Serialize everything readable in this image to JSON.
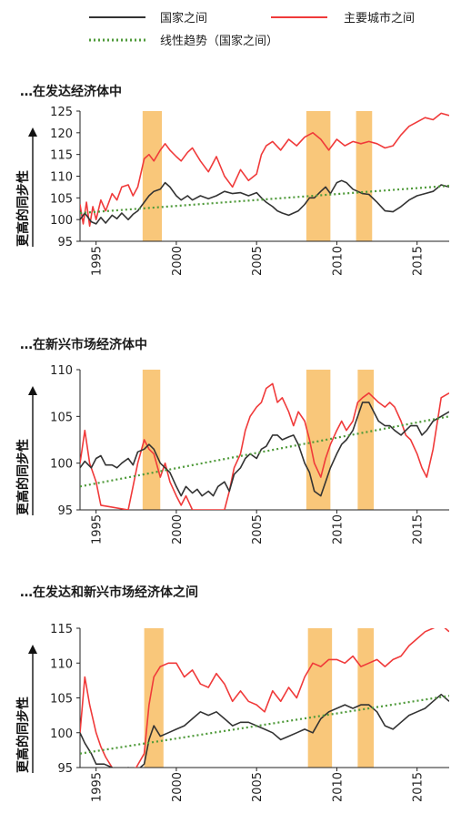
{
  "legend": [
    {
      "label": "国家之间",
      "color": "#333333",
      "style": "solid"
    },
    {
      "label": "主要城市之间",
      "color": "#f03a3a",
      "style": "solid"
    },
    {
      "label": "线性趋势（国家之间）",
      "color": "#4f9a3a",
      "style": "dotted"
    }
  ],
  "colors": {
    "countries": "#333333",
    "cities": "#f03a3a",
    "trend": "#4f9a3a",
    "recession": "#f9c77a"
  },
  "chart_data": [
    {
      "type": "line",
      "title": "…在发达经济体中",
      "ylabel": "更高的同步性",
      "ylim": [
        95,
        125
      ],
      "yticks": [
        95,
        100,
        105,
        110,
        115,
        120,
        125
      ],
      "xlim": [
        1994,
        2017
      ],
      "xticks": [
        1995,
        2000,
        2005,
        2010,
        2015
      ],
      "shaded": [
        [
          1997.9,
          1999.1
        ],
        [
          2008.1,
          2009.6
        ],
        [
          2011.2,
          2012.2
        ]
      ],
      "series": [
        {
          "name": "国家之间",
          "x": [
            1994.0,
            1994.3,
            1994.7,
            1995.0,
            1995.3,
            1995.6,
            1996.0,
            1996.3,
            1996.6,
            1997.0,
            1997.3,
            1997.6,
            1998.0,
            1998.3,
            1998.6,
            1999.0,
            1999.3,
            1999.6,
            2000.0,
            2000.3,
            2000.7,
            2001.0,
            2001.5,
            2002.0,
            2002.5,
            2003.0,
            2003.5,
            2004.0,
            2004.5,
            2005.0,
            2005.3,
            2005.6,
            2006.0,
            2006.3,
            2006.6,
            2007.0,
            2007.3,
            2007.6,
            2008.0,
            2008.3,
            2008.6,
            2009.0,
            2009.3,
            2009.6,
            2010.0,
            2010.3,
            2010.6,
            2011.0,
            2011.3,
            2011.6,
            2012.0,
            2012.5,
            2013.0,
            2013.5,
            2014.0,
            2014.5,
            2015.0,
            2015.5,
            2016.0,
            2016.5,
            2017.0
          ],
          "y": [
            100.0,
            101.5,
            99.5,
            99.0,
            100.5,
            99.2,
            101.0,
            100.2,
            101.5,
            100.0,
            101.2,
            102.0,
            104.0,
            105.5,
            106.5,
            107.0,
            108.5,
            107.5,
            105.5,
            104.5,
            105.5,
            104.5,
            105.5,
            104.8,
            105.5,
            106.5,
            106.0,
            106.2,
            105.5,
            106.2,
            105.0,
            104.0,
            103.0,
            102.0,
            101.5,
            101.0,
            101.5,
            102.0,
            103.5,
            105.0,
            105.0,
            106.5,
            107.5,
            106.0,
            108.5,
            109.0,
            108.5,
            107.0,
            106.5,
            106.0,
            105.8,
            104.0,
            102.0,
            101.8,
            103.0,
            104.5,
            105.5,
            106.0,
            106.5,
            108.0,
            107.5
          ]
        },
        {
          "name": "主要城市之间",
          "x": [
            1994.0,
            1994.2,
            1994.4,
            1994.6,
            1994.8,
            1995.0,
            1995.3,
            1995.6,
            1996.0,
            1996.3,
            1996.6,
            1997.0,
            1997.3,
            1997.6,
            1998.0,
            1998.3,
            1998.6,
            1999.0,
            1999.3,
            1999.6,
            2000.0,
            2000.3,
            2000.7,
            2001.0,
            2001.5,
            2002.0,
            2002.5,
            2003.0,
            2003.5,
            2004.0,
            2004.5,
            2005.0,
            2005.3,
            2005.6,
            2006.0,
            2006.5,
            2007.0,
            2007.5,
            2008.0,
            2008.5,
            2009.0,
            2009.5,
            2010.0,
            2010.5,
            2011.0,
            2011.5,
            2012.0,
            2012.5,
            2013.0,
            2013.5,
            2014.0,
            2014.5,
            2015.0,
            2015.5,
            2016.0,
            2016.5,
            2017.0
          ],
          "y": [
            103.5,
            99.0,
            104.0,
            98.5,
            103.0,
            100.0,
            104.5,
            102.0,
            106.0,
            104.5,
            107.5,
            108.0,
            105.5,
            107.5,
            114.0,
            115.0,
            113.5,
            116.0,
            117.5,
            116.0,
            114.5,
            113.5,
            115.5,
            116.5,
            113.5,
            111.0,
            114.5,
            110.0,
            107.5,
            111.5,
            109.0,
            110.5,
            115.0,
            117.0,
            118.0,
            116.0,
            118.5,
            117.0,
            119.0,
            120.0,
            118.5,
            116.0,
            118.5,
            117.0,
            118.0,
            117.5,
            118.0,
            117.5,
            116.5,
            117.0,
            119.5,
            121.5,
            122.5,
            123.5,
            123.0,
            124.5,
            124.0
          ]
        },
        {
          "name": "线性趋势（国家之间）",
          "x": [
            1994.0,
            2017.0
          ],
          "y": [
            101.5,
            107.8
          ]
        }
      ]
    },
    {
      "type": "line",
      "title": "…在新兴市场经济体中",
      "ylabel": "更高的同步性",
      "ylim": [
        95,
        110
      ],
      "yticks": [
        95,
        100,
        105,
        110
      ],
      "xlim": [
        1994,
        2017
      ],
      "xticks": [
        1995,
        2000,
        2005,
        2010,
        2015
      ],
      "shaded": [
        [
          1997.9,
          1999.0
        ],
        [
          2008.1,
          2009.6
        ],
        [
          2011.3,
          2012.3
        ]
      ],
      "series": [
        {
          "name": "国家之间",
          "x": [
            1994.0,
            1994.3,
            1994.7,
            1995.0,
            1995.3,
            1995.6,
            1996.0,
            1996.3,
            1996.6,
            1997.0,
            1997.3,
            1997.6,
            1998.0,
            1998.3,
            1998.6,
            1999.0,
            1999.3,
            1999.6,
            2000.0,
            2000.3,
            2000.6,
            2001.0,
            2001.3,
            2001.6,
            2002.0,
            2002.3,
            2002.6,
            2003.0,
            2003.3,
            2003.6,
            2004.0,
            2004.3,
            2004.6,
            2005.0,
            2005.3,
            2005.6,
            2006.0,
            2006.3,
            2006.6,
            2007.0,
            2007.3,
            2007.6,
            2008.0,
            2008.3,
            2008.6,
            2009.0,
            2009.3,
            2009.6,
            2010.0,
            2010.3,
            2010.6,
            2011.0,
            2011.3,
            2011.6,
            2012.0,
            2012.3,
            2012.6,
            2013.0,
            2013.3,
            2013.6,
            2014.0,
            2014.3,
            2014.6,
            2015.0,
            2015.3,
            2015.6,
            2016.0,
            2016.5,
            2017.0
          ],
          "y": [
            99.5,
            100.2,
            99.5,
            100.5,
            100.8,
            99.8,
            99.8,
            99.5,
            100.0,
            100.5,
            99.8,
            101.2,
            101.5,
            102.0,
            101.5,
            100.0,
            99.5,
            99.0,
            97.5,
            96.5,
            97.5,
            96.8,
            97.2,
            96.5,
            97.0,
            96.5,
            97.5,
            98.0,
            97.0,
            98.8,
            99.5,
            100.5,
            101.0,
            100.5,
            101.5,
            101.8,
            103.0,
            103.0,
            102.5,
            102.8,
            103.0,
            102.0,
            100.0,
            99.0,
            97.0,
            96.5,
            98.0,
            99.5,
            101.0,
            102.0,
            102.5,
            103.5,
            105.0,
            106.5,
            106.5,
            105.5,
            104.5,
            104.0,
            104.0,
            103.5,
            103.0,
            103.5,
            104.0,
            104.0,
            103.0,
            103.5,
            104.5,
            105.0,
            105.5
          ]
        },
        {
          "name": "主要城市之间",
          "x": [
            1994.0,
            1994.3,
            1994.6,
            1995.0,
            1995.3,
            1997.0,
            1997.3,
            1997.6,
            1998.0,
            1998.3,
            1998.6,
            1999.0,
            1999.3,
            1999.6,
            2000.0,
            2000.3,
            2000.6,
            2001.0,
            2001.5,
            2002.0,
            2002.5,
            2003.0,
            2003.3,
            2003.6,
            2004.0,
            2004.3,
            2004.6,
            2005.0,
            2005.3,
            2005.6,
            2006.0,
            2006.3,
            2006.6,
            2007.0,
            2007.3,
            2007.6,
            2008.0,
            2008.3,
            2008.6,
            2009.0,
            2009.3,
            2009.6,
            2010.0,
            2010.3,
            2010.6,
            2011.0,
            2011.3,
            2011.6,
            2012.0,
            2012.3,
            2012.6,
            2013.0,
            2013.3,
            2013.6,
            2014.0,
            2014.3,
            2014.6,
            2015.0,
            2015.3,
            2015.6,
            2016.0,
            2016.5,
            2017.0
          ],
          "y": [
            100.0,
            103.5,
            100.0,
            98.0,
            95.5,
            95.0,
            97.5,
            100.0,
            102.5,
            101.5,
            101.0,
            98.5,
            100.0,
            98.0,
            96.5,
            95.5,
            96.5,
            95.0,
            95.0,
            95.0,
            95.0,
            95.0,
            97.0,
            99.5,
            101.0,
            103.5,
            105.0,
            106.0,
            106.5,
            108.0,
            108.5,
            106.5,
            107.0,
            105.5,
            104.0,
            105.5,
            104.5,
            102.5,
            100.0,
            98.5,
            100.5,
            102.0,
            103.5,
            104.5,
            103.5,
            104.5,
            106.5,
            107.0,
            107.5,
            107.0,
            106.5,
            106.0,
            106.5,
            106.0,
            104.5,
            103.0,
            102.5,
            101.0,
            99.5,
            98.5,
            101.5,
            107.0,
            107.5
          ]
        },
        {
          "name": "线性趋势（国家之间）",
          "x": [
            1994.0,
            2017.0
          ],
          "y": [
            97.5,
            105.0
          ]
        }
      ]
    },
    {
      "type": "line",
      "title": "…在发达和新兴市场经济体之间",
      "ylabel": "更高的同步性",
      "ylim": [
        95,
        115
      ],
      "yticks": [
        95,
        100,
        105,
        110,
        115
      ],
      "xlim": [
        1994,
        2017
      ],
      "xticks": [
        1995,
        2000,
        2005,
        2010,
        2015
      ],
      "shaded": [
        [
          1998.0,
          1999.2
        ],
        [
          2008.2,
          2009.7
        ],
        [
          2011.3,
          2012.3
        ]
      ],
      "series": [
        {
          "name": "国家之间",
          "x": [
            1994.0,
            1994.3,
            1994.7,
            1995.0,
            1995.5,
            1996.0,
            1996.5,
            1997.0,
            1997.5,
            1998.0,
            1998.3,
            1998.6,
            1999.0,
            1999.5,
            2000.0,
            2000.5,
            2001.0,
            2001.5,
            2002.0,
            2002.5,
            2003.0,
            2003.5,
            2004.0,
            2004.5,
            2005.0,
            2005.5,
            2006.0,
            2006.5,
            2007.0,
            2007.5,
            2008.0,
            2008.5,
            2009.0,
            2009.5,
            2010.0,
            2010.5,
            2011.0,
            2011.5,
            2012.0,
            2012.5,
            2013.0,
            2013.5,
            2014.0,
            2014.5,
            2015.0,
            2015.5,
            2016.0,
            2016.5,
            2017.0
          ],
          "y": [
            100.0,
            98.5,
            97.0,
            95.5,
            95.5,
            95.0,
            94.5,
            95.0,
            94.5,
            95.5,
            99.0,
            101.0,
            99.5,
            100.0,
            100.5,
            101.0,
            102.0,
            103.0,
            102.5,
            103.0,
            102.0,
            101.0,
            101.5,
            101.5,
            101.0,
            100.5,
            100.0,
            99.0,
            99.5,
            100.0,
            100.5,
            100.0,
            102.0,
            103.0,
            103.5,
            104.0,
            103.5,
            104.0,
            104.0,
            103.0,
            101.0,
            100.5,
            101.5,
            102.5,
            103.0,
            103.5,
            104.5,
            105.5,
            104.5
          ]
        },
        {
          "name": "主要城市之间",
          "x": [
            1994.0,
            1994.3,
            1994.6,
            1995.0,
            1995.3,
            1995.6,
            1996.0,
            1996.5,
            1997.0,
            1997.5,
            1998.0,
            1998.3,
            1998.6,
            1999.0,
            1999.5,
            2000.0,
            2000.5,
            2001.0,
            2001.5,
            2002.0,
            2002.5,
            2003.0,
            2003.5,
            2004.0,
            2004.5,
            2005.0,
            2005.5,
            2006.0,
            2006.5,
            2007.0,
            2007.5,
            2008.0,
            2008.5,
            2009.0,
            2009.5,
            2010.0,
            2010.5,
            2011.0,
            2011.5,
            2012.0,
            2012.5,
            2013.0,
            2013.5,
            2014.0,
            2014.5,
            2015.0,
            2015.5,
            2016.0,
            2016.5,
            2017.0
          ],
          "y": [
            100.0,
            108.0,
            104.0,
            100.0,
            98.0,
            96.5,
            95.0,
            94.0,
            94.5,
            95.0,
            97.0,
            104.0,
            108.0,
            109.5,
            110.0,
            110.0,
            108.0,
            109.0,
            107.0,
            106.5,
            108.5,
            107.0,
            104.5,
            106.0,
            104.5,
            104.0,
            103.0,
            106.0,
            104.5,
            106.5,
            105.0,
            108.0,
            110.0,
            109.5,
            110.5,
            110.5,
            110.0,
            111.0,
            109.5,
            110.0,
            110.5,
            109.5,
            110.5,
            111.0,
            112.5,
            113.5,
            114.5,
            115.0,
            115.5,
            114.5
          ]
        },
        {
          "name": "线性趋势（国家之间）",
          "x": [
            1994.0,
            2017.0
          ],
          "y": [
            97.0,
            105.3
          ]
        }
      ]
    }
  ]
}
